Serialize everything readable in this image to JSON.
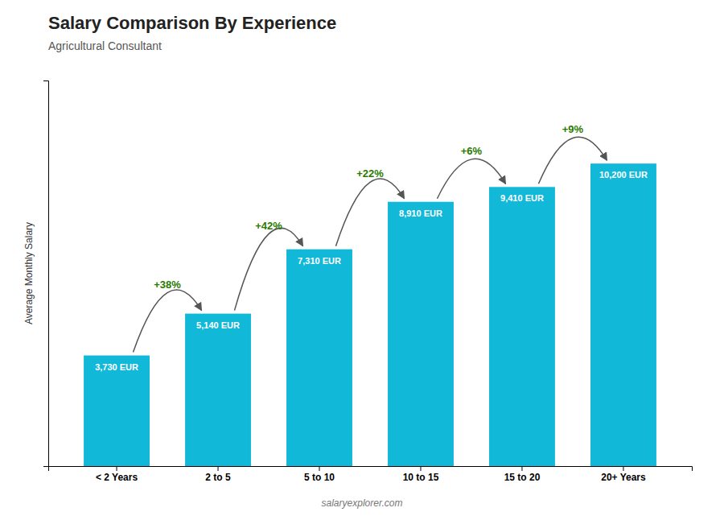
{
  "chart_data": {
    "type": "bar",
    "title": "Salary Comparison By Experience",
    "subtitle": "Agricultural Consultant",
    "categories": [
      "< 2 Years",
      "2 to 5",
      "5 to 10",
      "10 to 15",
      "15 to 20",
      "20+ Years"
    ],
    "values": [
      3730,
      5140,
      7310,
      8910,
      9410,
      10200
    ],
    "value_labels": [
      "3,730 EUR",
      "5,140 EUR",
      "7,310 EUR",
      "8,910 EUR",
      "9,410 EUR",
      "10,200 EUR"
    ],
    "data_labels": true,
    "annotations": [
      "+38%",
      "+42%",
      "+22%",
      "+6%",
      "+9%"
    ],
    "ylabel": "Average Monthly Salary",
    "watermark": "salaryexplorer.com",
    "color": "#12b8d8",
    "ylim": [
      0,
      13000
    ],
    "tick_labels": "x"
  }
}
